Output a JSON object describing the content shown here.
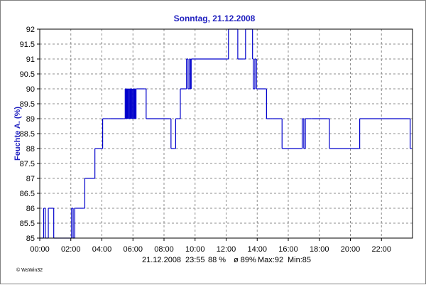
{
  "chart_data": {
    "type": "line",
    "title": "Sonntag, 21.12.2008",
    "ylabel": "Feuchte A. (%)",
    "xlabel": "",
    "xlim": [
      0,
      24
    ],
    "ylim": [
      85,
      92
    ],
    "x_ticks": [
      {
        "value": 0,
        "label": "00:00"
      },
      {
        "value": 2,
        "label": "02:00"
      },
      {
        "value": 4,
        "label": "04:00"
      },
      {
        "value": 6,
        "label": "06:00"
      },
      {
        "value": 8,
        "label": "08:00"
      },
      {
        "value": 10,
        "label": "10:00"
      },
      {
        "value": 12,
        "label": "12:00"
      },
      {
        "value": 14,
        "label": "14:00"
      },
      {
        "value": 16,
        "label": "16:00"
      },
      {
        "value": 18,
        "label": "18:00"
      },
      {
        "value": 20,
        "label": "20:00"
      },
      {
        "value": 22,
        "label": "22:00"
      }
    ],
    "y_ticks": [
      {
        "value": 85,
        "label": "85"
      },
      {
        "value": 85.5,
        "label": "85.5"
      },
      {
        "value": 86,
        "label": "86"
      },
      {
        "value": 86.5,
        "label": "86.5"
      },
      {
        "value": 87,
        "label": "87"
      },
      {
        "value": 87.5,
        "label": "87.5"
      },
      {
        "value": 88,
        "label": "88"
      },
      {
        "value": 88.5,
        "label": "88.5"
      },
      {
        "value": 89,
        "label": "89"
      },
      {
        "value": 89.5,
        "label": "89.5"
      },
      {
        "value": 90,
        "label": "90"
      },
      {
        "value": 90.5,
        "label": "90.5"
      },
      {
        "value": 91,
        "label": "91"
      },
      {
        "value": 91.5,
        "label": "91.5"
      },
      {
        "value": 92,
        "label": "92"
      }
    ],
    "grid": true,
    "series": [
      {
        "color": "#0000cc",
        "x": [
          0.0,
          0.25,
          0.35,
          0.45,
          0.55,
          0.65,
          0.9,
          1.0,
          1.1,
          1.25,
          1.4,
          1.5,
          1.95,
          2.05,
          2.15,
          2.25,
          2.3,
          2.4,
          2.8,
          2.9,
          3.45,
          3.55,
          3.95,
          4.05,
          4.4,
          4.55,
          5.4,
          5.5,
          5.55,
          5.6,
          5.65,
          5.7,
          5.75,
          5.8,
          5.85,
          5.9,
          5.95,
          6.0,
          6.05,
          6.1,
          6.15,
          6.2,
          6.25,
          6.35,
          6.75,
          6.85,
          8.35,
          8.45,
          8.65,
          8.75,
          8.95,
          9.05,
          9.35,
          9.45,
          9.55,
          9.65,
          9.7,
          9.75,
          12.05,
          12.15,
          12.65,
          12.75,
          13.15,
          13.25,
          13.6,
          13.7,
          13.75,
          13.85,
          13.95,
          14.0,
          14.5,
          14.6,
          14.85,
          14.95,
          15.5,
          15.6,
          16.8,
          16.9,
          17.0,
          17.1,
          17.3,
          17.4,
          17.5,
          17.6,
          18.55,
          18.65,
          20.5,
          20.6,
          23.75,
          23.85,
          23.95
        ],
        "y": [
          85,
          86,
          85,
          85,
          86,
          86,
          85,
          85,
          85,
          85,
          85,
          85,
          85,
          86,
          85,
          86,
          86,
          86,
          86,
          87,
          87,
          88,
          88,
          89,
          89,
          89,
          89,
          90,
          89,
          90,
          89,
          90,
          89,
          90,
          89,
          90,
          89,
          90,
          89,
          90,
          89,
          90,
          90,
          90,
          90,
          89,
          89,
          88,
          88,
          89,
          89,
          90,
          90,
          91,
          90,
          91,
          90,
          91,
          91,
          92,
          92,
          91,
          91,
          92,
          92,
          91,
          90,
          91,
          90,
          90,
          90,
          89,
          89,
          89,
          89,
          88,
          88,
          89,
          88,
          89,
          89,
          89,
          89,
          89,
          89,
          88,
          88,
          89,
          89,
          88,
          88
        ]
      }
    ]
  },
  "footer": {
    "date": "21.12.2008",
    "time": "23:55",
    "current": "88 %",
    "average": "ø 89%",
    "max": "Max:92",
    "min": "Min:85"
  },
  "credit": "© WsWin32"
}
